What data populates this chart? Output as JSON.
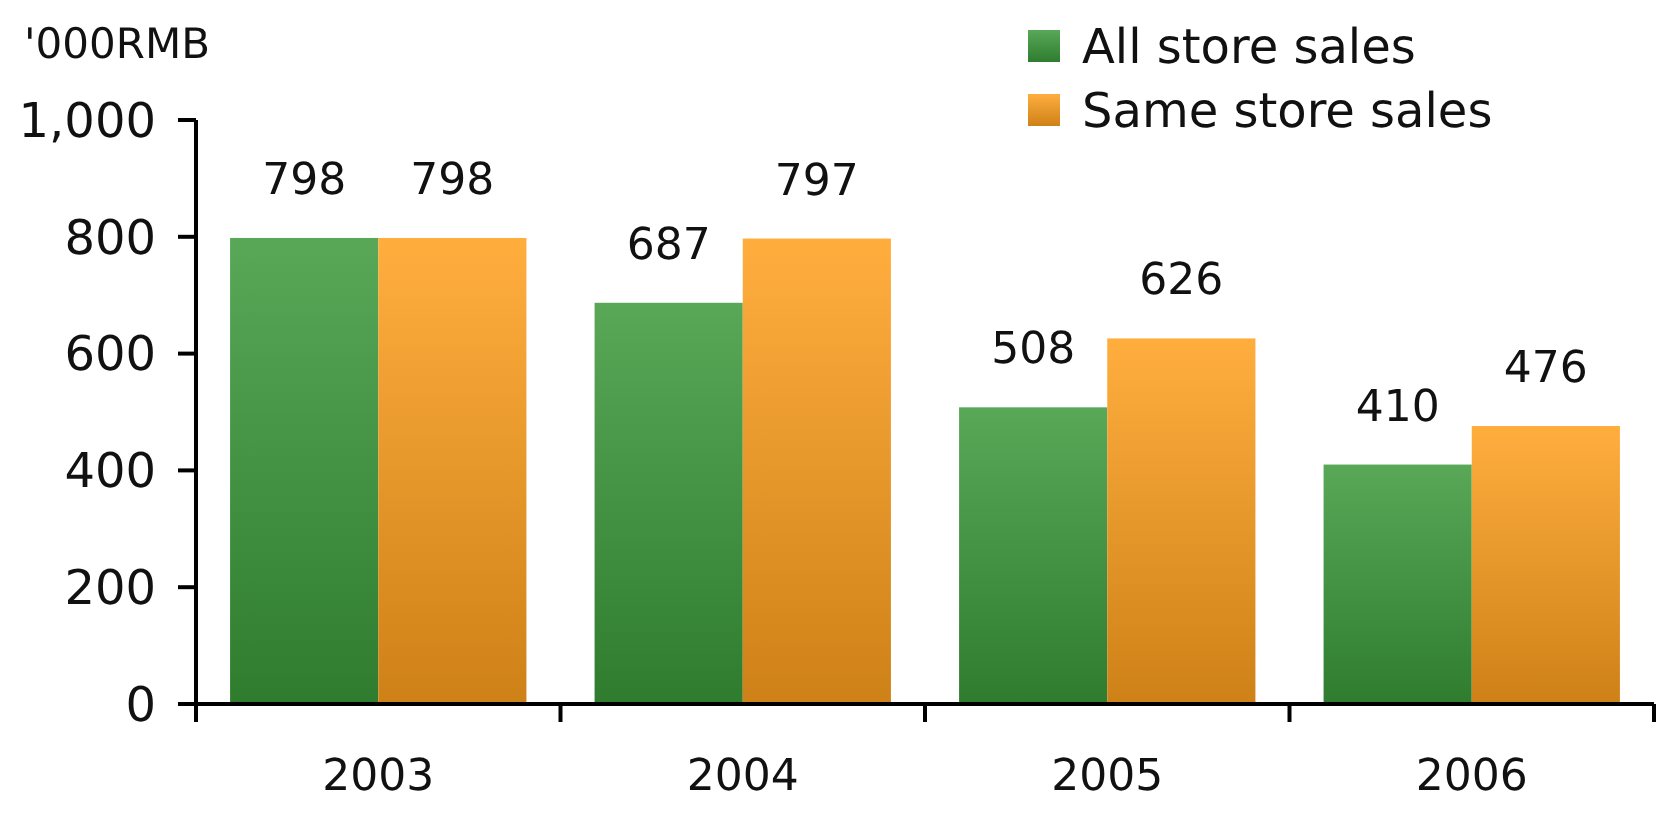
{
  "chart_data": {
    "type": "bar",
    "ylabel": "'000RMB",
    "categories": [
      "2003",
      "2004",
      "2005",
      "2006"
    ],
    "series": [
      {
        "name": "All store sales",
        "color": "#3a993a",
        "values": [
          798,
          687,
          508,
          410
        ]
      },
      {
        "name": "Same store sales",
        "color": "#ffa01c",
        "values": [
          798,
          797,
          626,
          476
        ]
      }
    ],
    "ylim": [
      0,
      1000
    ],
    "yticks": [
      0,
      200,
      400,
      600,
      800,
      {
        "value": 1000,
        "label": "1,000"
      }
    ],
    "data_labels": true,
    "legend": "top right"
  }
}
